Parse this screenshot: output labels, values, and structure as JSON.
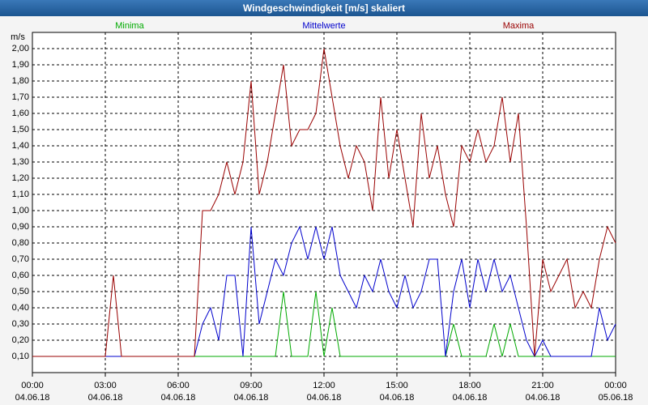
{
  "chart_data": {
    "type": "line",
    "title": "Windgeschwindigkeit [m/s] skaliert",
    "y_label": "m/s",
    "x": [
      0,
      20,
      40,
      60,
      80,
      100,
      120,
      140,
      160,
      180,
      200,
      220,
      240,
      260,
      280,
      300,
      320,
      340,
      360,
      380,
      400,
      420,
      440,
      460,
      480,
      500,
      520,
      540,
      560,
      580,
      600,
      620,
      640,
      660,
      680,
      700,
      720,
      740,
      760,
      780,
      800,
      820,
      840,
      860,
      880,
      900,
      920,
      940,
      960,
      980,
      1000,
      1020,
      1040,
      1060,
      1080,
      1100,
      1120,
      1140,
      1160,
      1180,
      1200,
      1220,
      1240,
      1260,
      1280,
      1300,
      1320,
      1340,
      1360,
      1380,
      1400,
      1420,
      1440
    ],
    "series": [
      {
        "name": "Minima",
        "color": "#00aa00",
        "values": [
          0.1,
          0.1,
          0.1,
          0.1,
          0.1,
          0.1,
          0.1,
          0.1,
          0.1,
          0.1,
          0.1,
          0.1,
          0.1,
          0.1,
          0.1,
          0.1,
          0.1,
          0.1,
          0.1,
          0.1,
          0.1,
          0.1,
          0.1,
          0.1,
          0.1,
          0.1,
          0.1,
          0.1,
          0.1,
          0.1,
          0.1,
          0.5,
          0.1,
          0.1,
          0.1,
          0.5,
          0.1,
          0.4,
          0.1,
          0.1,
          0.1,
          0.1,
          0.1,
          0.1,
          0.1,
          0.1,
          0.1,
          0.1,
          0.1,
          0.1,
          0.1,
          0.1,
          0.3,
          0.1,
          0.1,
          0.1,
          0.1,
          0.3,
          0.1,
          0.3,
          0.1,
          0.1,
          0.1,
          0.1,
          0.1,
          0.1,
          0.1,
          0.1,
          0.1,
          0.1,
          0.1,
          0.1,
          0.1
        ]
      },
      {
        "name": "Mittelwerte",
        "color": "#0000cc",
        "values": [
          0.1,
          0.1,
          0.1,
          0.1,
          0.1,
          0.1,
          0.1,
          0.1,
          0.1,
          0.1,
          0.1,
          0.1,
          0.1,
          0.1,
          0.1,
          0.1,
          0.1,
          0.1,
          0.1,
          0.1,
          0.1,
          0.3,
          0.4,
          0.2,
          0.6,
          0.6,
          0.1,
          0.9,
          0.3,
          0.5,
          0.7,
          0.6,
          0.8,
          0.9,
          0.7,
          0.9,
          0.7,
          0.9,
          0.6,
          0.5,
          0.4,
          0.6,
          0.5,
          0.7,
          0.5,
          0.4,
          0.6,
          0.4,
          0.5,
          0.7,
          0.7,
          0.1,
          0.5,
          0.7,
          0.4,
          0.7,
          0.5,
          0.7,
          0.5,
          0.6,
          0.4,
          0.2,
          0.1,
          0.2,
          0.1,
          0.1,
          0.1,
          0.1,
          0.1,
          0.1,
          0.4,
          0.2,
          0.3
        ]
      },
      {
        "name": "Maxima",
        "color": "#990000",
        "values": [
          0.1,
          0.1,
          0.1,
          0.1,
          0.1,
          0.1,
          0.1,
          0.1,
          0.1,
          0.1,
          0.6,
          0.1,
          0.1,
          0.1,
          0.1,
          0.1,
          0.1,
          0.1,
          0.1,
          0.1,
          0.1,
          1.0,
          1.0,
          1.1,
          1.3,
          1.1,
          1.3,
          1.8,
          1.1,
          1.3,
          1.6,
          1.9,
          1.4,
          1.5,
          1.5,
          1.6,
          2.0,
          1.7,
          1.4,
          1.2,
          1.4,
          1.3,
          1.0,
          1.7,
          1.2,
          1.5,
          1.2,
          0.9,
          1.6,
          1.2,
          1.4,
          1.1,
          0.9,
          1.4,
          1.3,
          1.5,
          1.3,
          1.4,
          1.7,
          1.3,
          1.6,
          0.9,
          0.1,
          0.7,
          0.5,
          0.6,
          0.7,
          0.4,
          0.5,
          0.4,
          0.7,
          0.9,
          0.8
        ]
      }
    ],
    "xlim": [
      0,
      1440
    ],
    "xticks": [
      {
        "value": 0,
        "label": "00:00\n04.06.18"
      },
      {
        "value": 180,
        "label": "03:00\n04.06.18"
      },
      {
        "value": 360,
        "label": "06:00\n04.06.18"
      },
      {
        "value": 540,
        "label": "09:00\n04.06.18"
      },
      {
        "value": 720,
        "label": "12:00\n04.06.18"
      },
      {
        "value": 900,
        "label": "15:00\n04.06.18"
      },
      {
        "value": 1080,
        "label": "18:00\n04.06.18"
      },
      {
        "value": 1260,
        "label": "21:00\n04.06.18"
      },
      {
        "value": 1440,
        "label": "00:00\n05.06.18"
      }
    ],
    "ylim": [
      0,
      2.1
    ],
    "yticks": [
      {
        "value": 0.1,
        "label": "0,10"
      },
      {
        "value": 0.2,
        "label": "0,20"
      },
      {
        "value": 0.3,
        "label": "0,30"
      },
      {
        "value": 0.4,
        "label": "0,40"
      },
      {
        "value": 0.5,
        "label": "0,50"
      },
      {
        "value": 0.6,
        "label": "0,60"
      },
      {
        "value": 0.7,
        "label": "0,70"
      },
      {
        "value": 0.8,
        "label": "0,80"
      },
      {
        "value": 0.9,
        "label": "0,90"
      },
      {
        "value": 1.0,
        "label": "1,00"
      },
      {
        "value": 1.1,
        "label": "1,10"
      },
      {
        "value": 1.2,
        "label": "1,20"
      },
      {
        "value": 1.3,
        "label": "1,30"
      },
      {
        "value": 1.4,
        "label": "1,40"
      },
      {
        "value": 1.5,
        "label": "1,50"
      },
      {
        "value": 1.6,
        "label": "1,60"
      },
      {
        "value": 1.7,
        "label": "1,70"
      },
      {
        "value": 1.8,
        "label": "1,80"
      },
      {
        "value": 1.9,
        "label": "1,90"
      },
      {
        "value": 2.0,
        "label": "2,00"
      }
    ],
    "grid": true
  }
}
